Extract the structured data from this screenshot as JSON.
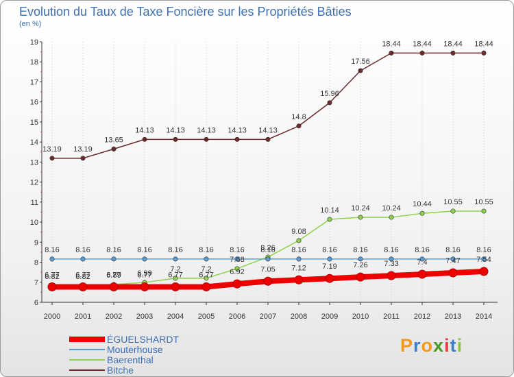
{
  "chart_data": {
    "type": "line",
    "title": "Evolution du Taux de Taxe Foncière sur les Propriétés Bâties",
    "subtitle": "(en %)",
    "xlabel": "",
    "ylabel": "",
    "categories": [
      "2000",
      "2001",
      "2002",
      "2003",
      "2004",
      "2005",
      "2006",
      "2007",
      "2008",
      "2009",
      "2010",
      "2011",
      "2012",
      "2013",
      "2014"
    ],
    "ylim": [
      6,
      19
    ],
    "yticks": [
      6,
      7,
      8,
      9,
      10,
      11,
      12,
      13,
      14,
      15,
      16,
      17,
      18,
      19
    ],
    "grid": "vertical dotted",
    "legend_position": "bottom-left",
    "series": [
      {
        "name": "ÉGUELSHARDT",
        "color": "#ee0000",
        "values": [
          6.77,
          6.77,
          6.77,
          6.77,
          6.77,
          6.77,
          6.92,
          7.05,
          7.12,
          7.19,
          7.26,
          7.33,
          7.4,
          7.47,
          7.54
        ],
        "labels": [
          "6.77",
          "6.77",
          "6.77",
          "6.77",
          "6.77",
          "6.77",
          "6.92",
          "7.05",
          "7.12",
          "7.19",
          "7.26",
          "7.33",
          "7.4",
          "7.47",
          "7.54"
        ]
      },
      {
        "name": "Mouterhouse",
        "color": "#5b9bd0",
        "values": [
          8.16,
          8.16,
          8.16,
          8.16,
          8.16,
          8.16,
          8.16,
          8.16,
          8.16,
          8.16,
          8.16,
          8.16,
          8.16,
          8.16,
          8.16
        ],
        "labels": [
          "8.16",
          "8.16",
          "8.16",
          "8.16",
          "8.16",
          "8.16",
          "8.16",
          "8.16",
          "8.16",
          "8.16",
          "8.16",
          "8.16",
          "8.16",
          "8.16",
          "8.16"
        ]
      },
      {
        "name": "Baerenthal",
        "color": "#8fd14f",
        "values": [
          6.82,
          6.82,
          6.89,
          6.99,
          7.2,
          7.2,
          7.68,
          8.26,
          9.08,
          10.14,
          10.24,
          10.24,
          10.44,
          10.55,
          10.55
        ],
        "labels": [
          "6.82",
          "6.82",
          "6.89",
          "6.99",
          "7.2",
          "7.2",
          "7.68",
          "8.26",
          "9.08",
          "10.14",
          "10.24",
          "10.24",
          "10.44",
          "10.55",
          "10.55"
        ]
      },
      {
        "name": "Bitche",
        "color": "#6b2b2b",
        "values": [
          13.19,
          13.19,
          13.65,
          14.13,
          14.13,
          14.13,
          14.13,
          14.13,
          14.8,
          15.96,
          17.56,
          18.44,
          18.44,
          18.44,
          18.44
        ],
        "labels": [
          "13.19",
          "13.19",
          "13.65",
          "14.13",
          "14.13",
          "14.13",
          "14.13",
          "14.13",
          "14.8",
          "15.96",
          "17.56",
          "18.44",
          "18.44",
          "18.44",
          "18.44"
        ]
      }
    ]
  },
  "logo": {
    "letters": [
      "P",
      "r",
      "o",
      "x",
      "i",
      "t",
      "i"
    ],
    "colors": [
      "#f29a1c",
      "#3d7fc8",
      "#f29a1c",
      "#4a9a2a",
      "#e83a3a",
      "#3d7fc8",
      "#8fc640"
    ]
  }
}
